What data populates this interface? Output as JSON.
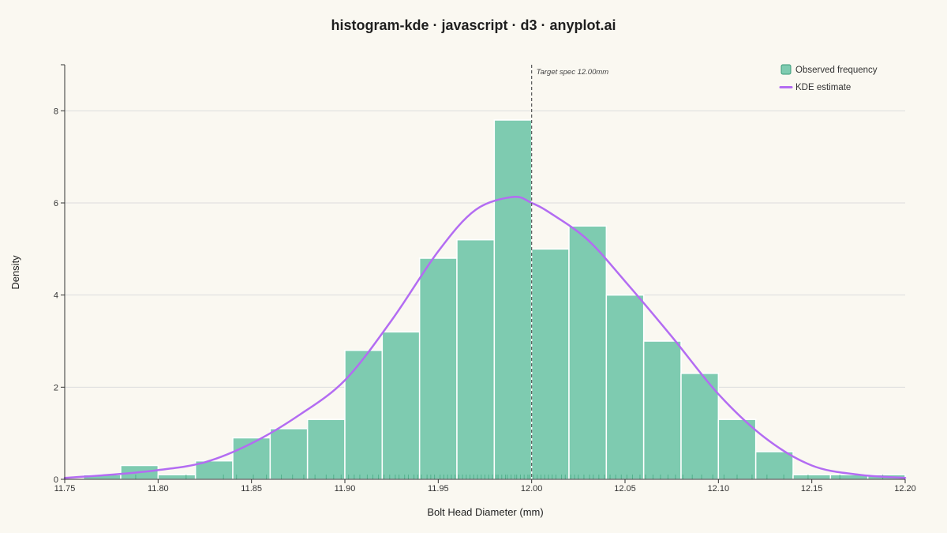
{
  "colors": {
    "background": "#FAF8F1",
    "bar_fill": "#7ECBB0",
    "bar_stroke": "#ffffff",
    "legend_swatch_stroke": "#3A9A78",
    "kde_line": "#B36CF2",
    "grid": "#DDDDDD",
    "axis": "#333333",
    "rug": "#2E9C70",
    "reference_line": "#555555"
  },
  "chart_data": {
    "type": "bar",
    "title": "histogram-kde · javascript · d3 · anyplot.ai",
    "xlabel": "Bolt Head Diameter (mm)",
    "ylabel": "Density",
    "xlim": [
      11.75,
      12.2
    ],
    "ylim": [
      0,
      9
    ],
    "x_ticks": [
      "11.75",
      "11.80",
      "11.85",
      "11.90",
      "11.95",
      "12.00",
      "12.05",
      "12.10",
      "12.15",
      "12.20"
    ],
    "y_ticks": [
      "0",
      "2",
      "4",
      "6",
      "8"
    ],
    "grid": "horizontal",
    "legend_position": "top-right",
    "histogram": {
      "name": "Observed frequency",
      "bin_edges": [
        11.76,
        11.78,
        11.8,
        11.82,
        11.84,
        11.86,
        11.88,
        11.9,
        11.92,
        11.94,
        11.96,
        11.98,
        12.0,
        12.02,
        12.04,
        12.06,
        12.08,
        12.1,
        12.12,
        12.14,
        12.16,
        12.18,
        12.2
      ],
      "values": [
        0.1,
        0.3,
        0.1,
        0.4,
        0.9,
        1.1,
        1.3,
        2.8,
        3.2,
        4.8,
        5.2,
        7.8,
        5.0,
        5.5,
        4.0,
        3.0,
        2.3,
        1.3,
        0.6,
        0.1,
        0.1,
        0.1
      ]
    },
    "kde": {
      "name": "KDE estimate",
      "x": [
        11.75,
        11.775,
        11.8,
        11.825,
        11.85,
        11.875,
        11.9,
        11.925,
        11.95,
        11.97,
        11.99,
        12.0,
        12.01,
        12.03,
        12.05,
        12.075,
        12.1,
        12.125,
        12.15,
        12.175,
        12.2
      ],
      "y": [
        0.03,
        0.1,
        0.2,
        0.37,
        0.78,
        1.38,
        2.15,
        3.45,
        4.95,
        5.85,
        6.13,
        6.0,
        5.78,
        5.2,
        4.3,
        3.1,
        1.85,
        0.9,
        0.3,
        0.1,
        0.03
      ]
    },
    "rug": [
      11.788,
      11.815,
      11.835,
      11.842,
      11.851,
      11.858,
      11.866,
      11.872,
      11.878,
      11.884,
      11.89,
      11.894,
      11.898,
      11.902,
      11.905,
      11.908,
      11.912,
      11.915,
      11.918,
      11.921,
      11.924,
      11.927,
      11.929,
      11.932,
      11.934,
      11.937,
      11.939,
      11.941,
      11.944,
      11.946,
      11.948,
      11.951,
      11.953,
      11.955,
      11.957,
      11.959,
      11.961,
      11.963,
      11.965,
      11.967,
      11.969,
      11.971,
      11.973,
      11.975,
      11.977,
      11.979,
      11.981,
      11.982,
      11.984,
      11.986,
      11.987,
      11.989,
      11.991,
      11.992,
      11.994,
      11.996,
      11.998,
      11.999,
      12.001,
      12.003,
      12.005,
      12.007,
      12.009,
      12.011,
      12.013,
      12.016,
      12.018,
      12.021,
      12.023,
      12.025,
      12.028,
      12.031,
      12.033,
      12.036,
      12.039,
      12.042,
      12.045,
      12.048,
      12.051,
      12.054,
      12.058,
      12.061,
      12.065,
      12.069,
      12.073,
      12.077,
      12.081,
      12.086,
      12.091,
      12.097,
      12.103,
      12.11,
      12.118,
      12.126,
      12.135,
      12.148,
      12.165,
      12.188
    ],
    "reference_line": {
      "x": 12.0,
      "label": "Target spec 12.00mm"
    }
  }
}
